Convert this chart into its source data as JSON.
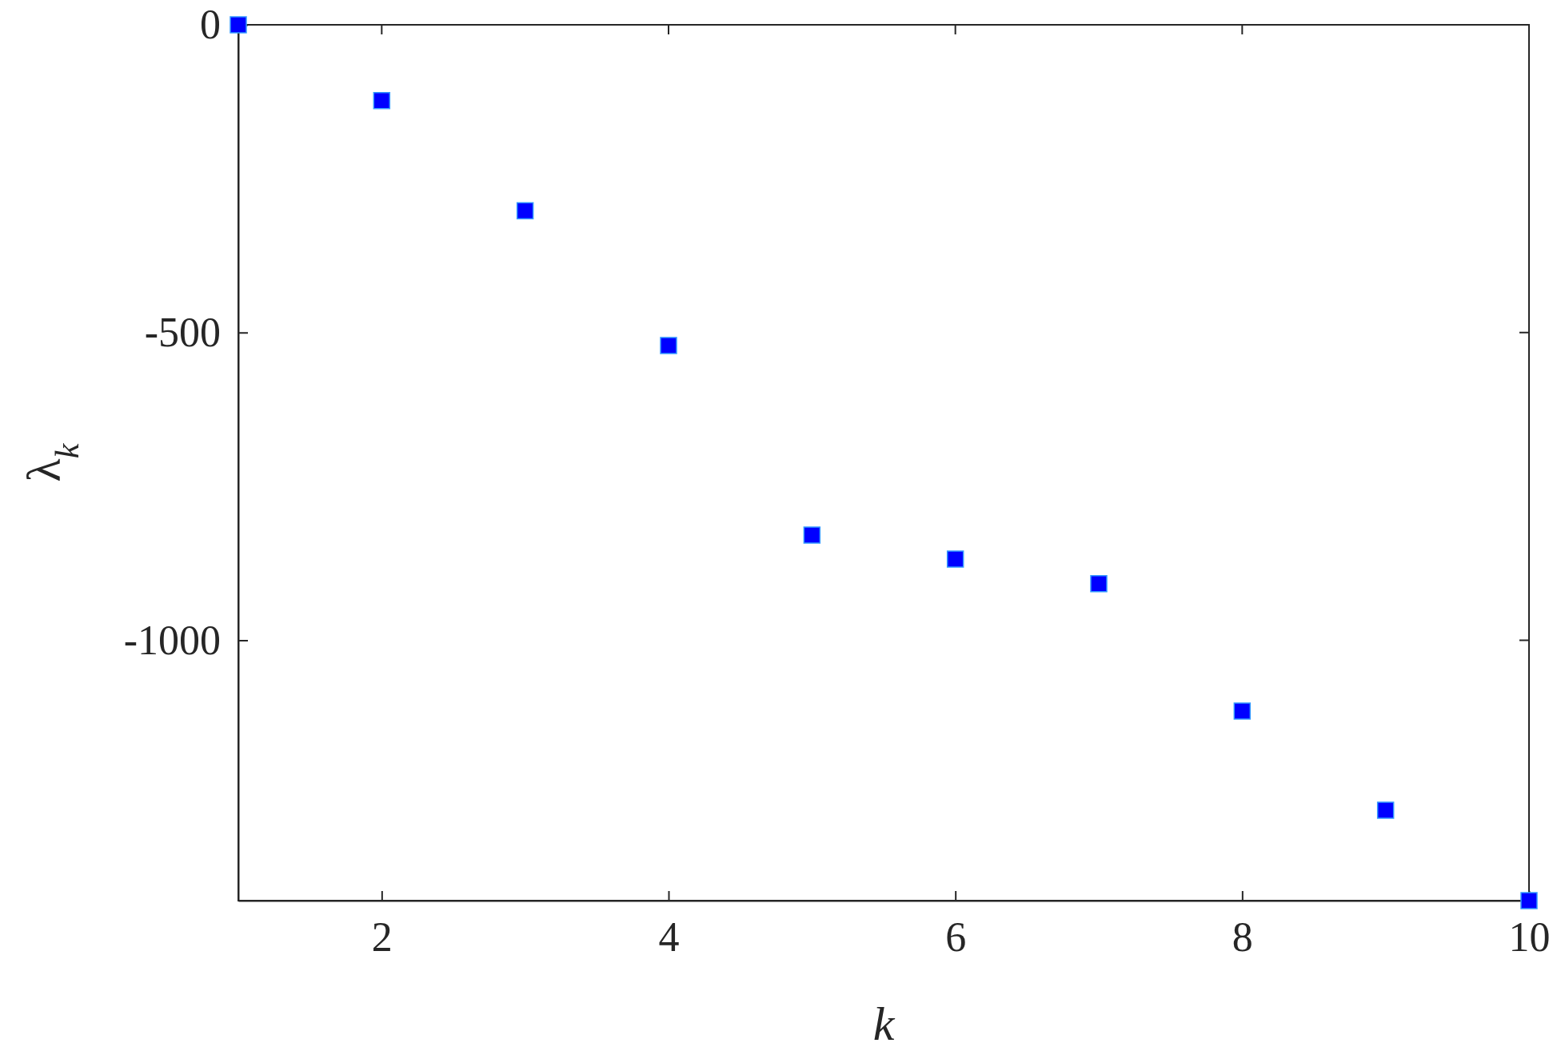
{
  "chart_data": {
    "type": "scatter",
    "xlabel": "k",
    "ylabel": "λ$_{k}$",
    "x": [
      1,
      2,
      3,
      4,
      5,
      6,
      7,
      8,
      9,
      10
    ],
    "series": [
      {
        "color": "#0000ff",
        "values": [
          0,
          -123,
          -302,
          -521,
          -829,
          -868,
          -908,
          -1115,
          -1276,
          -1423
        ]
      }
    ],
    "xlim": [
      1,
      10
    ],
    "xticks": [
      2,
      4,
      6,
      8,
      10
    ],
    "ylim": [
      -1423,
      0
    ],
    "yticks": [
      -1000,
      -500,
      0
    ],
    "marker": "square",
    "grid": false
  }
}
